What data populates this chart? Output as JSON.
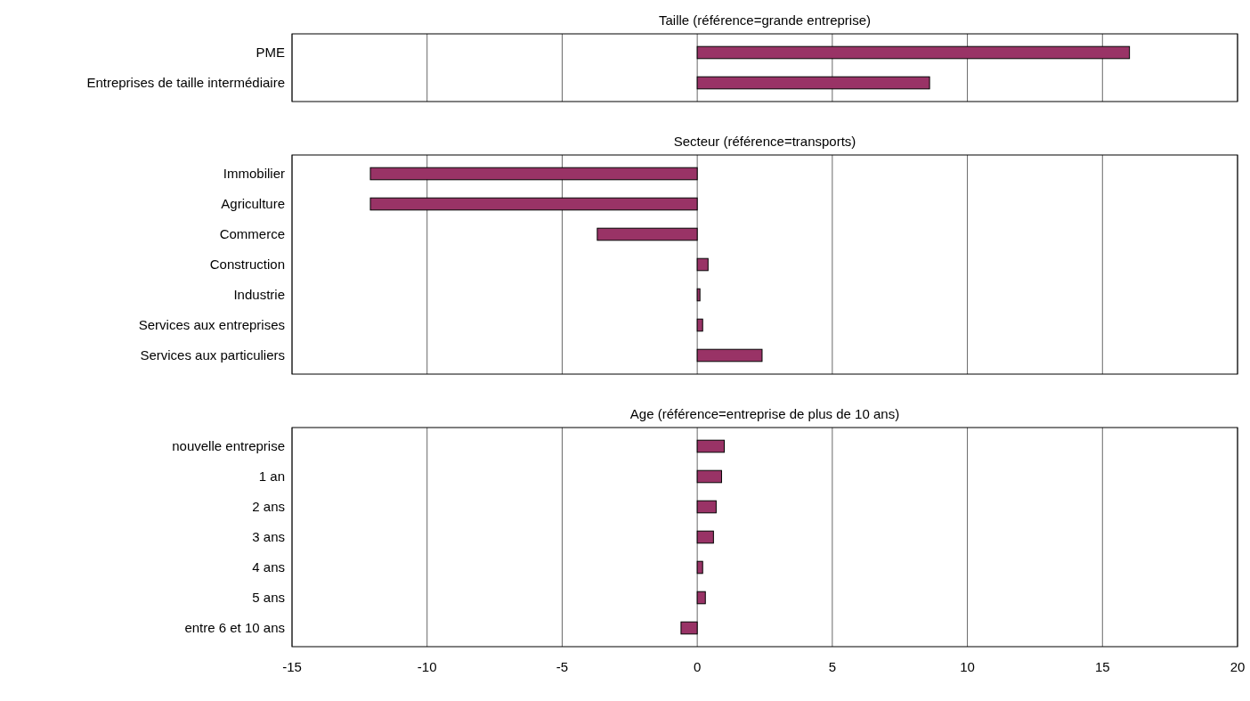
{
  "chart_data": [
    {
      "type": "bar",
      "orientation": "horizontal",
      "title": "Taille (référence=grande entreprise)",
      "categories": [
        "PME",
        "Entreprises de taille intermédiaire"
      ],
      "values": [
        16,
        8.6
      ],
      "color": "#993366",
      "xlim": [
        -15,
        20
      ],
      "xticks": [
        -15,
        -10,
        -5,
        0,
        5,
        10,
        15,
        20
      ],
      "grid": "x",
      "tick_labels": "y"
    },
    {
      "type": "bar",
      "orientation": "horizontal",
      "title": "Secteur (référence=transports)",
      "categories": [
        "Immobilier",
        "Agriculture",
        "Commerce",
        "Construction",
        "Industrie",
        "Services aux entreprises",
        "Services aux particuliers"
      ],
      "values": [
        -12.1,
        -12.1,
        -3.7,
        0.4,
        0.1,
        0.2,
        2.4
      ],
      "color": "#993366",
      "xlim": [
        -15,
        20
      ],
      "xticks": [
        -15,
        -10,
        -5,
        0,
        5,
        10,
        15,
        20
      ],
      "grid": "x",
      "tick_labels": "y"
    },
    {
      "type": "bar",
      "orientation": "horizontal",
      "title": "Age (référence=entreprise de plus de 10 ans)",
      "categories": [
        "nouvelle entreprise",
        "1 an",
        "2 ans",
        "3 ans",
        "4 ans ",
        "5 ans ",
        "entre 6 et 10 ans"
      ],
      "values": [
        1.0,
        0.9,
        0.7,
        0.6,
        0.2,
        0.3,
        -0.6
      ],
      "color": "#993366",
      "xlim": [
        -15,
        20
      ],
      "xticks": [
        -15,
        -10,
        -5,
        0,
        5,
        10,
        15,
        20
      ],
      "grid": "x"
    }
  ]
}
